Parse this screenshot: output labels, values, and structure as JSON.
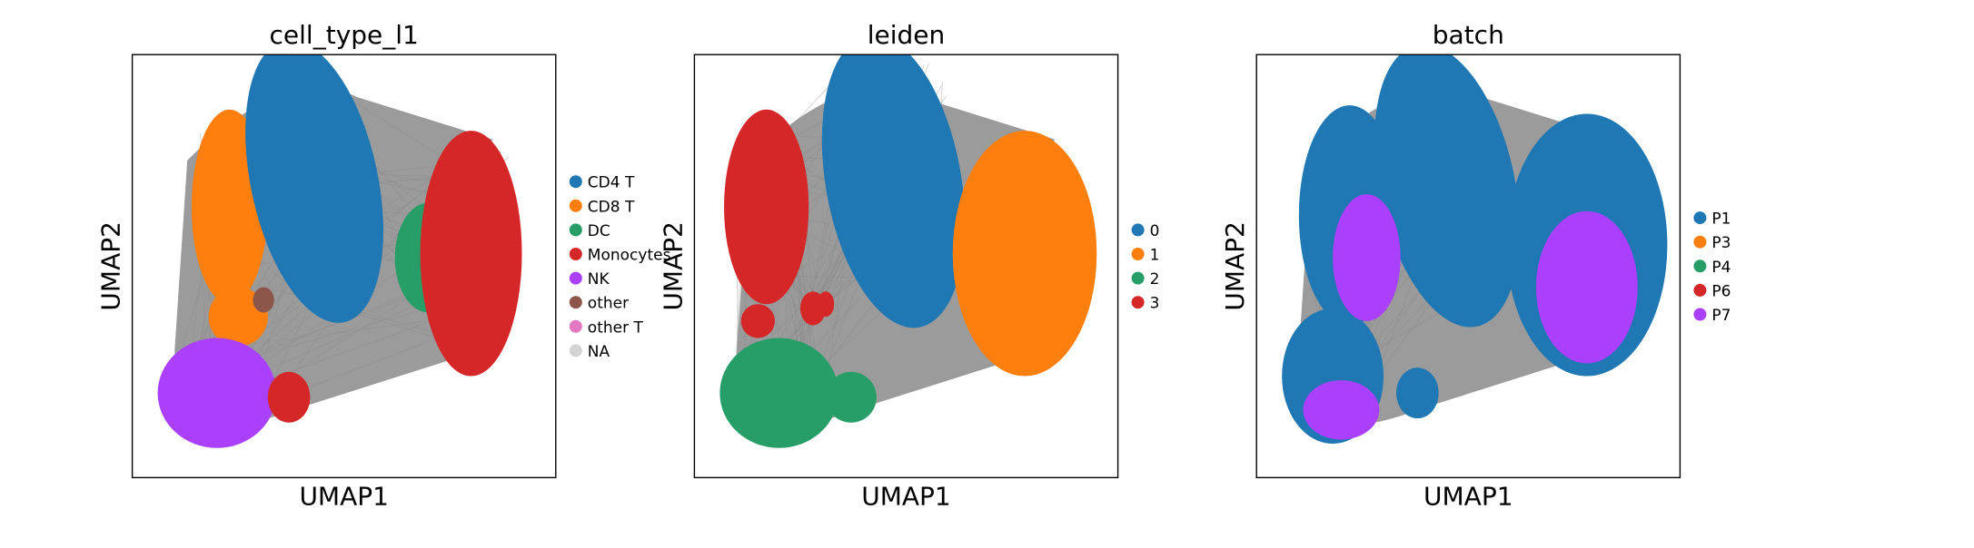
{
  "chart_data": [
    {
      "type": "scatter",
      "title": "cell_type_l1",
      "xlabel": "UMAP1",
      "ylabel": "UMAP2",
      "grid": false,
      "legend_placement": "right",
      "legend": [
        {
          "label": "CD4 T",
          "color": "#1f77b4"
        },
        {
          "label": "CD8 T",
          "color": "#ff7f0e"
        },
        {
          "label": "DC",
          "color": "#279e68"
        },
        {
          "label": "Monocytes",
          "color": "#d62728"
        },
        {
          "label": "NK",
          "color": "#aa40fc"
        },
        {
          "label": "other",
          "color": "#8c564b"
        },
        {
          "label": "other T",
          "color": "#e377c2"
        },
        {
          "label": "NA",
          "color": "#d3d3d3"
        }
      ],
      "regions": [
        {
          "label": "CD8 T",
          "color": "#ff7f0e"
        },
        {
          "label": "CD4 T",
          "color": "#1f77b4"
        },
        {
          "label": "DC",
          "color": "#279e68"
        },
        {
          "label": "Monocytes",
          "color": "#d62728"
        },
        {
          "label": "CD8 T",
          "color": "#ff7f0e"
        },
        {
          "label": "NK",
          "color": "#aa40fc"
        },
        {
          "label": "Monocytes",
          "color": "#d62728"
        },
        {
          "label": "other",
          "color": "#8c564b"
        }
      ]
    },
    {
      "type": "scatter",
      "title": "leiden",
      "xlabel": "UMAP1",
      "ylabel": "UMAP2",
      "grid": false,
      "legend_placement": "right",
      "legend": [
        {
          "label": "0",
          "color": "#1f77b4"
        },
        {
          "label": "1",
          "color": "#ff7f0e"
        },
        {
          "label": "2",
          "color": "#279e68"
        },
        {
          "label": "3",
          "color": "#d62728"
        }
      ],
      "regions": [
        {
          "label": "3",
          "color": "#d62728"
        },
        {
          "label": "0",
          "color": "#1f77b4"
        },
        {
          "label": "1",
          "color": "#ff7f0e"
        },
        {
          "label": "2",
          "color": "#279e68"
        },
        {
          "label": "2",
          "color": "#279e68"
        },
        {
          "label": "3",
          "color": "#d62728"
        },
        {
          "label": "3",
          "color": "#d62728"
        },
        {
          "label": "3",
          "color": "#d62728"
        }
      ]
    },
    {
      "type": "scatter",
      "title": "batch",
      "xlabel": "UMAP1",
      "ylabel": "UMAP2",
      "grid": false,
      "legend_placement": "right",
      "legend": [
        {
          "label": "P1",
          "color": "#1f77b4"
        },
        {
          "label": "P3",
          "color": "#ff7f0e"
        },
        {
          "label": "P4",
          "color": "#279e68"
        },
        {
          "label": "P6",
          "color": "#d62728"
        },
        {
          "label": "P7",
          "color": "#aa40fc"
        }
      ],
      "regions": [
        {
          "label": "P1",
          "color": "#1f77b4"
        },
        {
          "label": "P1",
          "color": "#1f77b4"
        },
        {
          "label": "P1",
          "color": "#1f77b4"
        },
        {
          "label": "P1",
          "color": "#1f77b4"
        },
        {
          "label": "P1",
          "color": "#1f77b4"
        },
        {
          "label": "P7",
          "color": "#aa40fc"
        },
        {
          "label": "P7",
          "color": "#aa40fc"
        },
        {
          "label": "P7",
          "color": "#aa40fc"
        }
      ]
    }
  ]
}
